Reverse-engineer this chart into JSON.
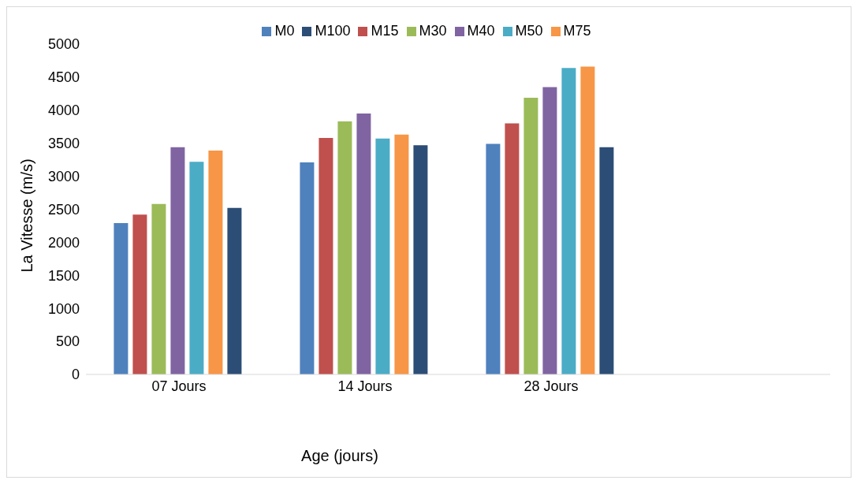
{
  "chart_data": {
    "type": "bar",
    "xlabel": "Age (jours)",
    "ylabel": "La Vitesse (m/s)",
    "categories": [
      "07 Jours",
      "14 Jours",
      "28 Jours",
      null
    ],
    "series": [
      {
        "name": "M0",
        "color": "#4f81bd",
        "values": [
          2290,
          3210,
          3490,
          null
        ]
      },
      {
        "name": "M15",
        "color": "#c0504d",
        "values": [
          2420,
          3580,
          3800,
          null
        ]
      },
      {
        "name": "M30",
        "color": "#9bbb59",
        "values": [
          2580,
          3830,
          4190,
          null
        ]
      },
      {
        "name": "M40",
        "color": "#8064a2",
        "values": [
          3440,
          3950,
          4350,
          null
        ]
      },
      {
        "name": "M50",
        "color": "#4bacc6",
        "values": [
          3220,
          3570,
          4640,
          null
        ]
      },
      {
        "name": "M75",
        "color": "#f79646",
        "values": [
          3390,
          3630,
          4660,
          null
        ]
      },
      {
        "name": "M100",
        "color": "#2c4d75",
        "values": [
          2520,
          3470,
          3440,
          null
        ]
      }
    ],
    "ylim": [
      0,
      5000
    ],
    "yticks": [
      0,
      500,
      1000,
      1500,
      2000,
      2500,
      3000,
      3500,
      4000,
      4500,
      5000
    ],
    "grid": false,
    "legend": "top"
  }
}
